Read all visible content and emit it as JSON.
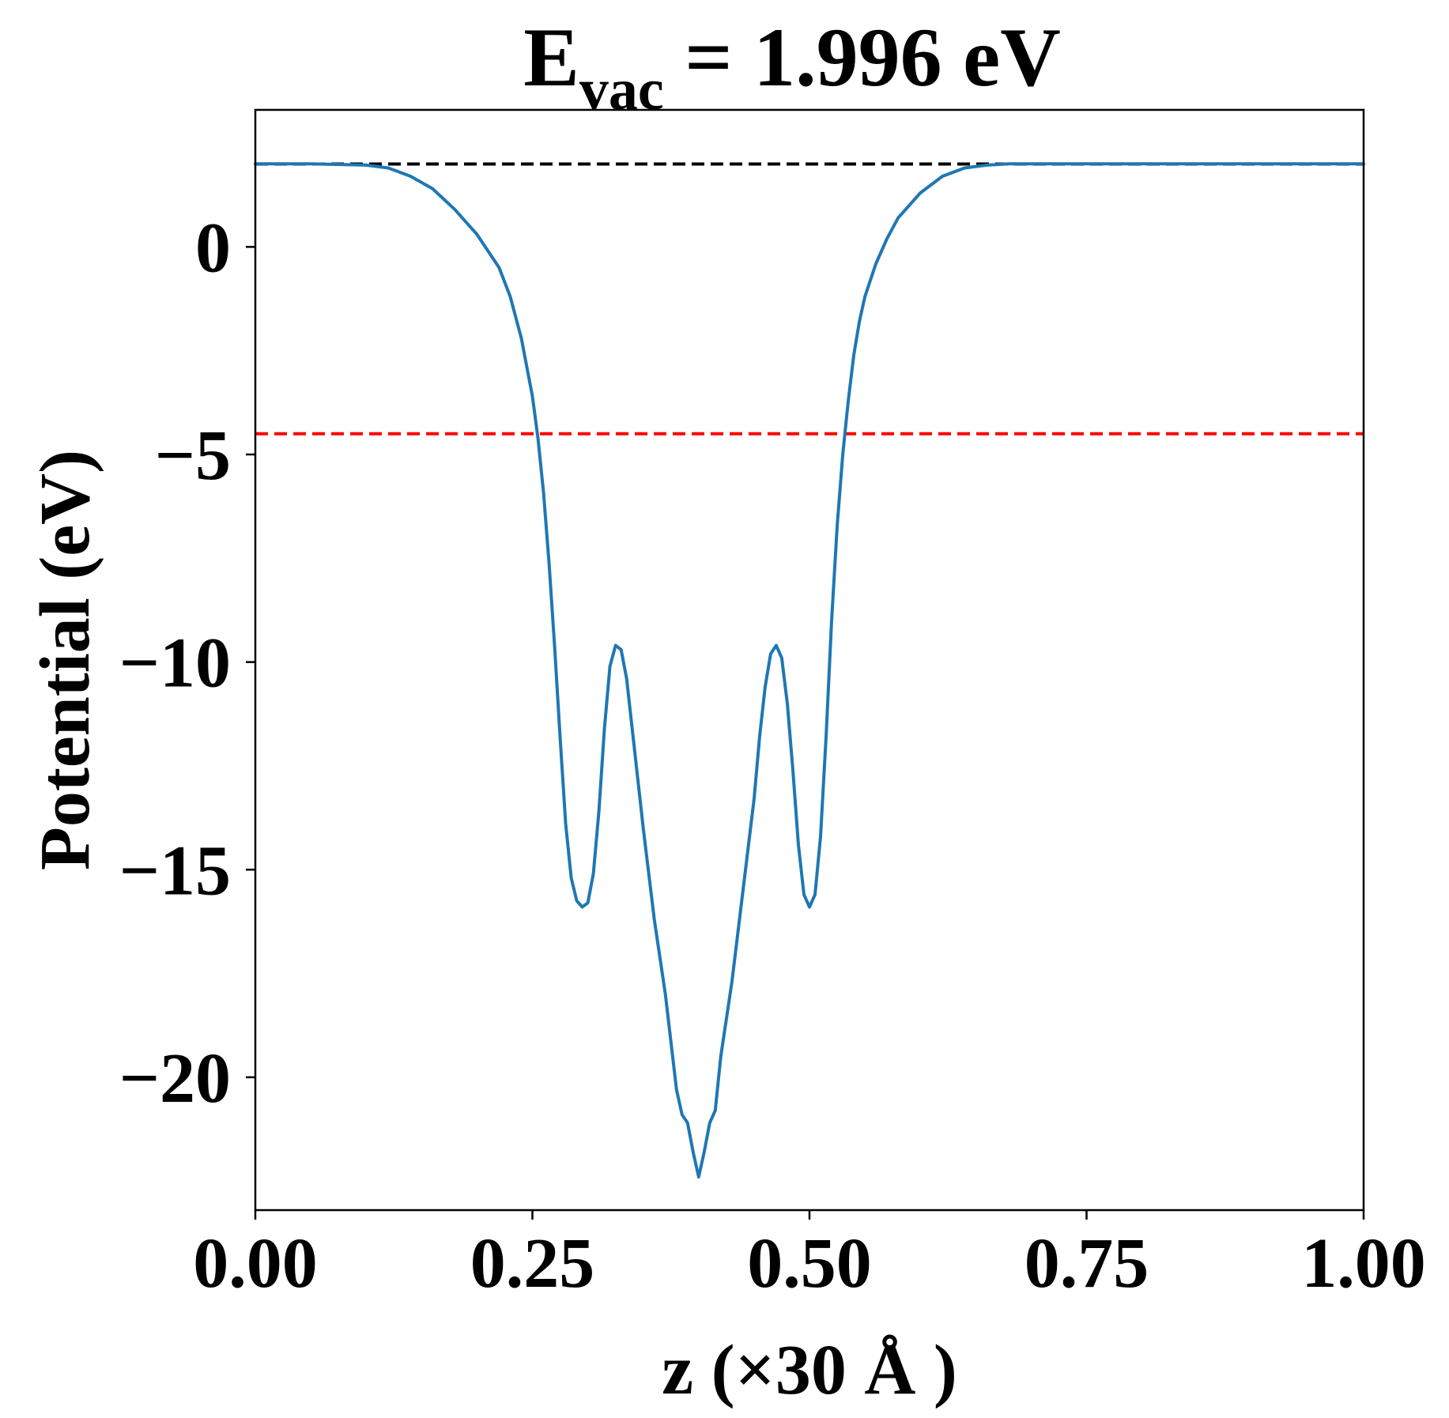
{
  "chart_data": {
    "type": "line",
    "title": {
      "main": "E",
      "sub": "vac",
      "rest": " = 1.996 eV"
    },
    "xlabel": "z (×30 Å )",
    "ylabel": "Potential (eV)",
    "xlim": [
      0.0,
      1.0
    ],
    "ylim": [
      -23.2,
      3.3
    ],
    "xticks": [
      0.0,
      0.25,
      0.5,
      0.75,
      1.0
    ],
    "xtick_labels": [
      "0.00",
      "0.25",
      "0.50",
      "0.75",
      "1.00"
    ],
    "yticks": [
      0,
      -5,
      -10,
      -15,
      -20
    ],
    "ytick_labels": [
      "0",
      "−5",
      "−10",
      "−15",
      "−20"
    ],
    "grid": false,
    "series": [
      {
        "color": "#1f77b4",
        "x": [
          0.0,
          0.02,
          0.05,
          0.08,
          0.1,
          0.12,
          0.14,
          0.16,
          0.18,
          0.2,
          0.22,
          0.23,
          0.24,
          0.25,
          0.255,
          0.26,
          0.265,
          0.27,
          0.275,
          0.28,
          0.285,
          0.29,
          0.295,
          0.3,
          0.305,
          0.31,
          0.315,
          0.32,
          0.325,
          0.33,
          0.335,
          0.34,
          0.345,
          0.35,
          0.36,
          0.37,
          0.38,
          0.385,
          0.39,
          0.395,
          0.4,
          0.405,
          0.41,
          0.415,
          0.42,
          0.43,
          0.44,
          0.45,
          0.455,
          0.46,
          0.465,
          0.47,
          0.475,
          0.48,
          0.485,
          0.49,
          0.495,
          0.5,
          0.505,
          0.51,
          0.515,
          0.52,
          0.525,
          0.53,
          0.535,
          0.54,
          0.545,
          0.55,
          0.56,
          0.57,
          0.58,
          0.6,
          0.62,
          0.64,
          0.66,
          0.68,
          0.7,
          0.72,
          0.75,
          0.8,
          0.85,
          0.9,
          0.95,
          1.0
        ],
        "y": [
          2.0,
          2.0,
          2.0,
          1.98,
          1.97,
          1.9,
          1.7,
          1.4,
          0.9,
          0.3,
          -0.5,
          -1.2,
          -2.2,
          -3.6,
          -4.6,
          -5.9,
          -7.6,
          -9.6,
          -11.8,
          -13.9,
          -15.2,
          -15.75,
          -15.9,
          -15.8,
          -15.1,
          -13.6,
          -11.6,
          -10.1,
          -9.6,
          -9.7,
          -10.4,
          -11.6,
          -12.8,
          -14.0,
          -16.2,
          -18.0,
          -20.3,
          -20.9,
          -21.1,
          -21.8,
          -22.4,
          -21.8,
          -21.1,
          -20.8,
          -19.5,
          -17.7,
          -15.5,
          -13.3,
          -11.8,
          -10.6,
          -9.8,
          -9.6,
          -9.9,
          -11.0,
          -12.6,
          -14.4,
          -15.6,
          -15.9,
          -15.6,
          -14.2,
          -11.8,
          -9.0,
          -6.7,
          -5.0,
          -3.7,
          -2.6,
          -1.8,
          -1.2,
          -0.4,
          0.2,
          0.7,
          1.3,
          1.7,
          1.9,
          1.97,
          2.0,
          2.0,
          2.0,
          2.0,
          2.0,
          2.0,
          2.0,
          2.0,
          2.0
        ]
      }
    ],
    "hlines": [
      {
        "y": 1.996,
        "color": "#000000",
        "style": "dashed"
      },
      {
        "y": -4.5,
        "color": "#ff0000",
        "style": "dashed"
      }
    ]
  }
}
